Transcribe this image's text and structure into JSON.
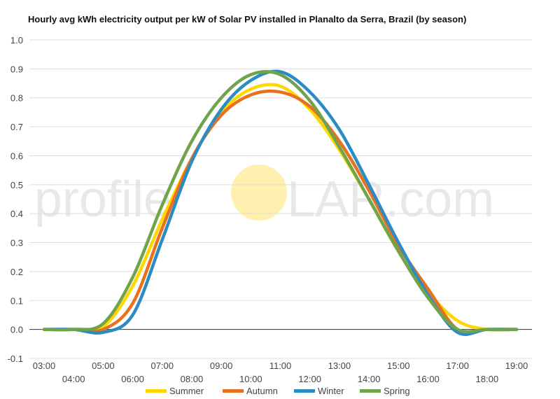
{
  "chart_data": {
    "type": "line",
    "title": "Hourly avg kWh electricity output per kW of Solar PV installed in Planalto da Serra, Brazil (by season)",
    "xlabel": "",
    "ylabel": "",
    "x_tick_labels": [
      "03:00",
      "04:00",
      "05:00",
      "06:00",
      "07:00",
      "08:00",
      "09:00",
      "10:00",
      "11:00",
      "12:00",
      "13:00",
      "14:00",
      "15:00",
      "16:00",
      "17:00",
      "18:00",
      "19:00"
    ],
    "x": [
      3,
      4,
      5,
      6,
      7,
      8,
      9,
      10,
      11,
      12,
      13,
      14,
      15,
      16,
      17,
      18,
      19
    ],
    "ylim": [
      -0.1,
      1.0
    ],
    "y_ticks": [
      "-0.1",
      "0.0",
      "0.1",
      "0.2",
      "0.3",
      "0.4",
      "0.5",
      "0.6",
      "0.7",
      "0.8",
      "0.9",
      "1.0"
    ],
    "grid": true,
    "legend_position": "bottom",
    "series": [
      {
        "name": "Summer",
        "color": "#FFD700",
        "values": [
          0.0,
          0.0,
          0.01,
          0.15,
          0.38,
          0.59,
          0.75,
          0.83,
          0.84,
          0.76,
          0.62,
          0.45,
          0.27,
          0.13,
          0.03,
          0.0,
          0.0
        ]
      },
      {
        "name": "Autumn",
        "color": "#E8711F",
        "values": [
          0.0,
          0.0,
          0.0,
          0.09,
          0.35,
          0.59,
          0.74,
          0.81,
          0.82,
          0.77,
          0.65,
          0.48,
          0.29,
          0.14,
          0.0,
          0.0,
          0.0
        ]
      },
      {
        "name": "Winter",
        "color": "#2B8CC4",
        "values": [
          0.0,
          0.0,
          -0.01,
          0.05,
          0.31,
          0.58,
          0.76,
          0.86,
          0.89,
          0.82,
          0.69,
          0.5,
          0.3,
          0.12,
          -0.01,
          0.0,
          0.0
        ]
      },
      {
        "name": "Spring",
        "color": "#70A34B",
        "values": [
          0.0,
          0.0,
          0.02,
          0.18,
          0.43,
          0.65,
          0.8,
          0.88,
          0.88,
          0.79,
          0.63,
          0.45,
          0.27,
          0.11,
          0.0,
          0.0,
          0.0
        ]
      }
    ],
    "watermark": {
      "left": "profile",
      "right": "LAR.com",
      "sun_color": "#FFF0B0"
    }
  }
}
